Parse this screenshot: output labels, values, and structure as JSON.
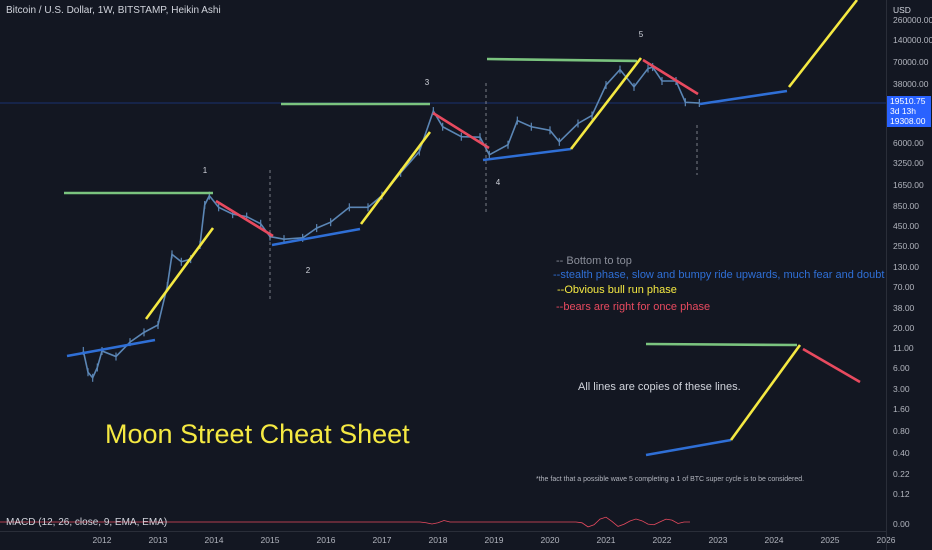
{
  "header": {
    "symbol_line": "Bitcoin / U.S. Dollar, 1W, BITSTAMP, Heikin Ashi"
  },
  "axis": {
    "currency": "USD"
  },
  "price_tag": {
    "price": "19510.75",
    "countdown": "3d 13h",
    "low": "19308.00"
  },
  "macd": {
    "label": "MACD (12, 26, close, 9, EMA, EMA)"
  },
  "notes": {
    "line1": "-- Bottom to top",
    "line2": "--stealth phase, slow and bumpy ride upwards, much fear and doubt",
    "line3": "--Obvious bull run phase",
    "line4": "--bears are right for once phase",
    "copies": "All lines are copies of these lines.",
    "title": "Moon Street Cheat Sheet",
    "footnote": "*the fact that a possible wave 5  completing a 1 of BTC super cycle is to be considered."
  },
  "colors": {
    "background": "#131722",
    "candle": "#5b86b5",
    "stealth": "#2f6fd6",
    "bull": "#f5e942",
    "bear": "#e84a5f",
    "top": "#7bc47f",
    "note_gray": "#8a8e99"
  },
  "chart_data": {
    "type": "line",
    "title": "Bitcoin / U.S. Dollar, 1W, BITSTAMP, Heikin Ashi",
    "scale": "log",
    "x_ticks": [
      "2012",
      "2013",
      "2014",
      "2015",
      "2016",
      "2017",
      "2018",
      "2019",
      "2020",
      "2021",
      "2022",
      "2023",
      "2024",
      "2025",
      "2026"
    ],
    "y_ticks": [
      "260000.00",
      "140000.00",
      "70000.00",
      "38000.00",
      "12000.00",
      "6000.00",
      "3250.00",
      "1650.00",
      "850.00",
      "450.00",
      "250.00",
      "130.00",
      "70.00",
      "38.00",
      "20.00",
      "11.00",
      "6.00",
      "3.00",
      "1.60",
      "0.80",
      "0.40",
      "0.22",
      "0.12",
      "0.00"
    ],
    "wave_labels": [
      "1",
      "2",
      "3",
      "4",
      "5"
    ],
    "series": [
      {
        "values": [
          {
            "x": "2011-09",
            "y": 6
          },
          {
            "x": "2011-10",
            "y": 3
          },
          {
            "x": "2011-11",
            "y": 2.5
          },
          {
            "x": "2011-12",
            "y": 3.5
          },
          {
            "x": "2012-01",
            "y": 6
          },
          {
            "x": "2012-04",
            "y": 5
          },
          {
            "x": "2012-07",
            "y": 8
          },
          {
            "x": "2012-10",
            "y": 11
          },
          {
            "x": "2013-01",
            "y": 14
          },
          {
            "x": "2013-03",
            "y": 50
          },
          {
            "x": "2013-04",
            "y": 140
          },
          {
            "x": "2013-06",
            "y": 110
          },
          {
            "x": "2013-08",
            "y": 120
          },
          {
            "x": "2013-10",
            "y": 190
          },
          {
            "x": "2013-11",
            "y": 700
          },
          {
            "x": "2013-12",
            "y": 950
          },
          {
            "x": "2014-02",
            "y": 650
          },
          {
            "x": "2014-05",
            "y": 520
          },
          {
            "x": "2014-08",
            "y": 480
          },
          {
            "x": "2014-11",
            "y": 380
          },
          {
            "x": "2015-01",
            "y": 250
          },
          {
            "x": "2015-04",
            "y": 230
          },
          {
            "x": "2015-08",
            "y": 240
          },
          {
            "x": "2015-11",
            "y": 330
          },
          {
            "x": "2016-02",
            "y": 400
          },
          {
            "x": "2016-06",
            "y": 650
          },
          {
            "x": "2016-10",
            "y": 650
          },
          {
            "x": "2017-01",
            "y": 950
          },
          {
            "x": "2017-05",
            "y": 2000
          },
          {
            "x": "2017-09",
            "y": 4000
          },
          {
            "x": "2017-12",
            "y": 15000
          },
          {
            "x": "2018-02",
            "y": 9000
          },
          {
            "x": "2018-06",
            "y": 6500
          },
          {
            "x": "2018-10",
            "y": 6400
          },
          {
            "x": "2018-12",
            "y": 3600
          },
          {
            "x": "2019-04",
            "y": 5000
          },
          {
            "x": "2019-06",
            "y": 11000
          },
          {
            "x": "2019-09",
            "y": 9000
          },
          {
            "x": "2020-01",
            "y": 8000
          },
          {
            "x": "2020-03",
            "y": 5500
          },
          {
            "x": "2020-07",
            "y": 10000
          },
          {
            "x": "2020-10",
            "y": 13000
          },
          {
            "x": "2021-01",
            "y": 35000
          },
          {
            "x": "2021-04",
            "y": 58000
          },
          {
            "x": "2021-07",
            "y": 33000
          },
          {
            "x": "2021-10",
            "y": 60000
          },
          {
            "x": "2021-11",
            "y": 63000
          },
          {
            "x": "2022-01",
            "y": 40000
          },
          {
            "x": "2022-04",
            "y": 40000
          },
          {
            "x": "2022-06",
            "y": 20000
          },
          {
            "x": "2022-09",
            "y": 19500
          }
        ]
      }
    ]
  }
}
